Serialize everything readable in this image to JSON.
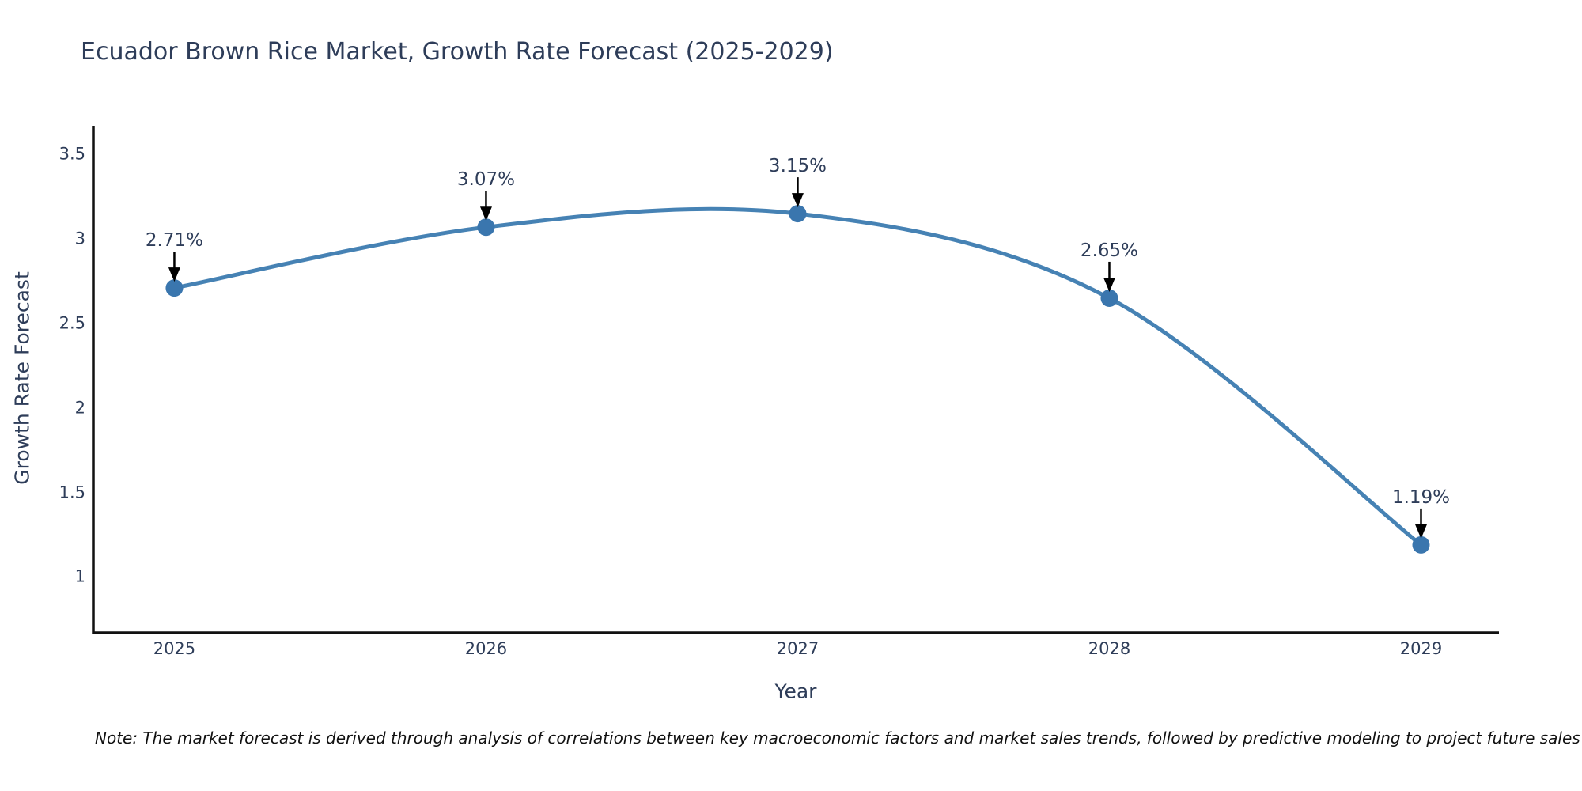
{
  "title": "Ecuador Brown Rice Market, Growth Rate Forecast (2025-2029)",
  "note": "Note: The market forecast is derived through analysis of correlations between key macroeconomic factors and market sales trends, followed by predictive modeling to project future sales",
  "colors": {
    "line": "#4682b4",
    "marker": "#3a76ae",
    "axis": "#111111",
    "arrow": "#000000",
    "text": "#2e3d59",
    "note_text": "#111111",
    "background": "#ffffff"
  },
  "chart_data": {
    "type": "line",
    "title": "Ecuador Brown Rice Market, Growth Rate Forecast (2025-2029)",
    "x": [
      2025,
      2026,
      2027,
      2028,
      2029
    ],
    "series": [
      {
        "name": "Growth Rate Forecast",
        "values": [
          2.71,
          3.07,
          3.15,
          2.65,
          1.19
        ]
      }
    ],
    "point_labels": [
      "2.71%",
      "3.07%",
      "3.15%",
      "2.65%",
      "1.19%"
    ],
    "xlabel": "Year",
    "ylabel": "Growth Rate Forecast",
    "xtick_labels": [
      "2025",
      "2026",
      "2027",
      "2028",
      "2029"
    ],
    "yticks": [
      1,
      1.5,
      2,
      2.5,
      3,
      3.5
    ],
    "ytick_labels": [
      "1",
      "1.5",
      "2",
      "2.5",
      "3",
      "3.5"
    ],
    "xlim": [
      2024.74,
      2029.25
    ],
    "ylim": [
      0.67,
      3.67
    ],
    "grid": false,
    "legend": "none",
    "line_shape": "spline",
    "annotations": "percentage value above each point with black down-arrow"
  }
}
